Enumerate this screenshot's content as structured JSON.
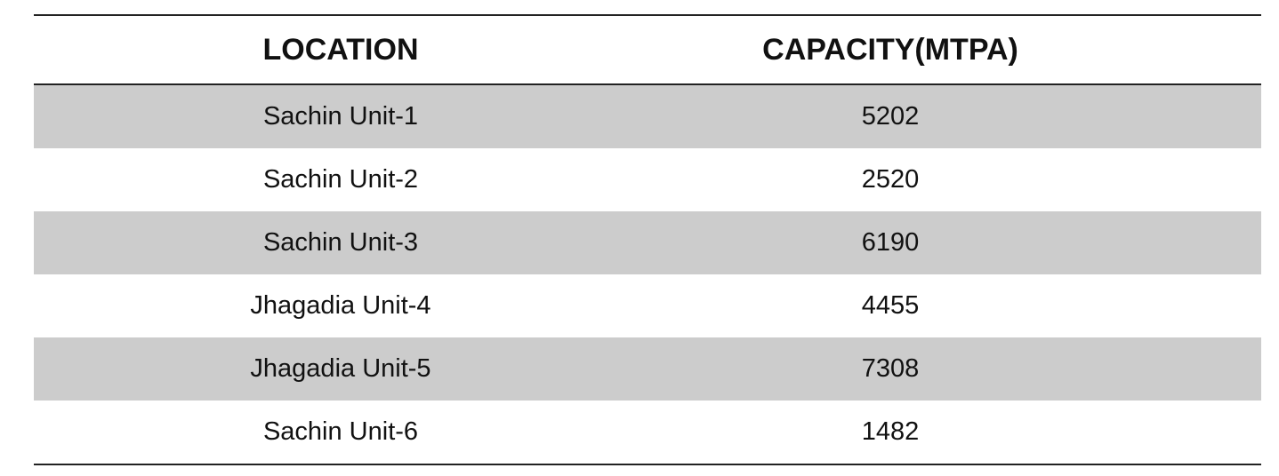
{
  "table": {
    "header": [
      "LOCATION",
      "CAPACITY(MTPA)"
    ],
    "rows": [
      [
        "Sachin Unit-1",
        5202
      ],
      [
        "Sachin Unit-2",
        2520
      ],
      [
        "Sachin Unit-3",
        6190
      ],
      [
        "Jhagadia Unit-4",
        4455
      ],
      [
        "Jhagadia Unit-5",
        7308
      ],
      [
        "Sachin Unit-6",
        1482
      ]
    ]
  }
}
